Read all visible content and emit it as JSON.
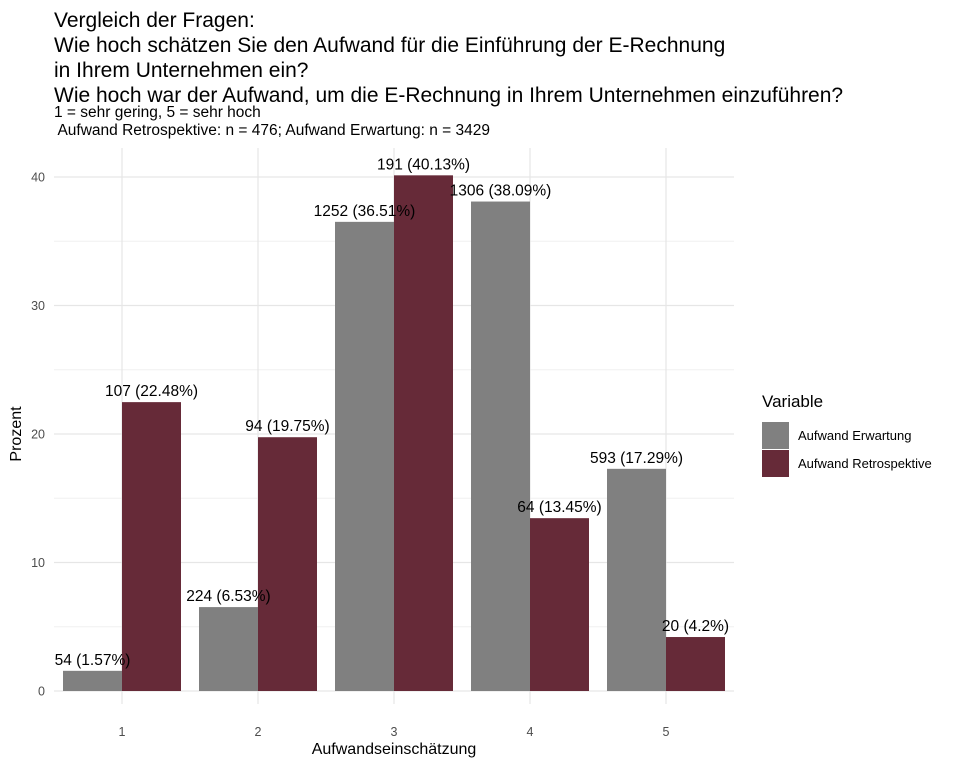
{
  "title_lines": [
    "Vergleich der Fragen:",
    "Wie hoch schätzen Sie den Aufwand für die Einführung der E-Rechnung",
    "in Ihrem Unternehmen ein?",
    "Wie hoch war der Aufwand, um die E-Rechnung in Ihrem Unternehmen einzuführen?"
  ],
  "subtitle_lines": [
    "1 = sehr gering, 5 = sehr hoch",
    " Aufwand Retrospektive: n = 476; Aufwand Erwartung: n = 3429"
  ],
  "legend": {
    "title": "Variable",
    "items": [
      {
        "label": "Aufwand Erwartung",
        "color": "#808080"
      },
      {
        "label": "Aufwand Retrospektive",
        "color": "#662A38"
      }
    ]
  },
  "chart_data": {
    "type": "bar",
    "categories": [
      "1",
      "2",
      "3",
      "4",
      "5"
    ],
    "xlabel": "Aufwandseinschätzung",
    "ylabel": "Prozent",
    "ylim": [
      0,
      42
    ],
    "yticks": [
      0,
      10,
      20,
      30,
      40
    ],
    "grid": true,
    "legend_position": "right",
    "series": [
      {
        "name": "Aufwand Erwartung",
        "color": "#808080",
        "values": [
          1.57,
          6.53,
          36.51,
          38.09,
          17.29
        ],
        "labels": [
          "54 (1.57%)",
          "224 (6.53%)",
          "1252 (36.51%)",
          "1306 (38.09%)",
          "593 (17.29%)"
        ]
      },
      {
        "name": "Aufwand Retrospektive",
        "color": "#662A38",
        "values": [
          22.48,
          19.75,
          40.13,
          13.45,
          4.2
        ],
        "labels": [
          "107 (22.48%)",
          "94 (19.75%)",
          "191 (40.13%)",
          "64 (13.45%)",
          "20 (4.2%)"
        ]
      }
    ]
  }
}
